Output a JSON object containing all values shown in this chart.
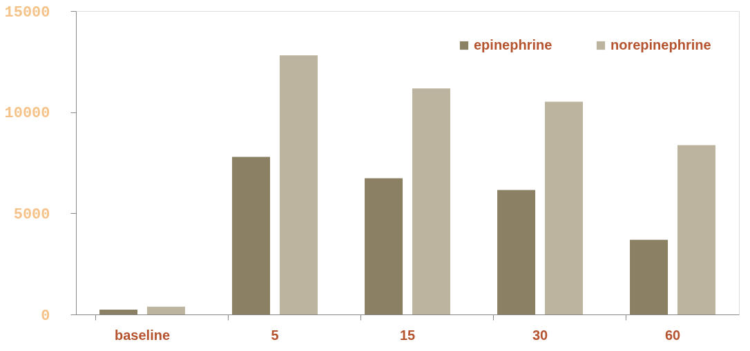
{
  "chart_data": {
    "type": "bar",
    "categories": [
      "baseline",
      "5",
      "15",
      "30",
      "60"
    ],
    "series": [
      {
        "name": "epinephrine",
        "color": "#8b8064",
        "values": [
          240,
          7790,
          6730,
          6150,
          3690
        ]
      },
      {
        "name": "norepinephrine",
        "color": "#bdb4a0",
        "values": [
          380,
          12810,
          11170,
          10520,
          8370
        ]
      }
    ],
    "ylim": [
      0,
      15000
    ],
    "yticks": [
      0,
      5000,
      10000,
      15000
    ],
    "grid": false,
    "legend": "top right"
  }
}
